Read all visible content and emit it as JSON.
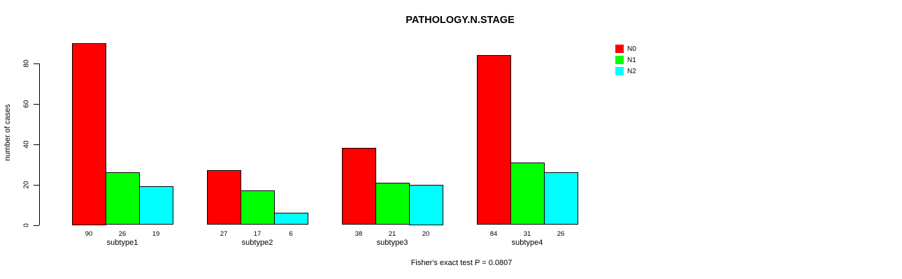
{
  "title": "PATHOLOGY.N.STAGE",
  "footnote": "Fisher's exact test P = 0.0807",
  "colors": {
    "N0": "#ff0000",
    "N1": "#00ff00",
    "N2": "#00ffff",
    "bar_border": "#000000",
    "axis": "#000000",
    "background": "#ffffff"
  },
  "legend": {
    "position": "top-right",
    "items": [
      {
        "label": "N0",
        "color": "#ff0000"
      },
      {
        "label": "N1",
        "color": "#00ff00"
      },
      {
        "label": "N2",
        "color": "#00ffff"
      }
    ]
  },
  "chart_data": {
    "type": "bar",
    "grouped": true,
    "title": "PATHOLOGY.N.STAGE",
    "xlabel": "",
    "ylabel": "number of cases",
    "categories": [
      "subtype1",
      "subtype2",
      "subtype3",
      "subtype4"
    ],
    "series": [
      {
        "name": "N0",
        "color": "#ff0000",
        "values": [
          90,
          27,
          38,
          84
        ]
      },
      {
        "name": "N1",
        "color": "#00ff00",
        "values": [
          26,
          17,
          21,
          31
        ]
      },
      {
        "name": "N2",
        "color": "#00ffff",
        "values": [
          19,
          6,
          20,
          26
        ]
      }
    ],
    "bar_value_labels": [
      [
        "90",
        "26",
        "19"
      ],
      [
        "27",
        "17",
        "6"
      ],
      [
        "38",
        "21",
        "20"
      ],
      [
        "84",
        "31",
        "26"
      ]
    ],
    "ylim": [
      0,
      90
    ],
    "yticks": [
      0,
      20,
      40,
      60,
      80
    ],
    "grid": false,
    "legend_position": "top-right",
    "annotation": "Fisher's exact test P = 0.0807"
  }
}
